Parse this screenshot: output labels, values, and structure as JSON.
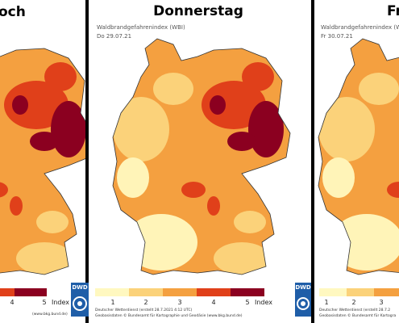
{
  "panels": [
    {
      "title": "och",
      "legend": [
        4,
        5
      ],
      "legend_unit": "Index",
      "footer": [
        "(www.bkg.bund.de)"
      ]
    },
    {
      "title": "Donnerstag",
      "subtitle": "Waldbrandgefahrenindex (WBI)",
      "date": "Do 29.07.21",
      "legend": [
        1,
        2,
        3,
        4,
        5
      ],
      "legend_unit": "Index",
      "logo": "DWD",
      "footer": [
        "Deutscher Wetterdienst (erstellt 28.7.2021 4:12 UTC)",
        "Geobasisdaten © Bundesamt für Kartographie und Geodäsie (www.bkg.bund.de)"
      ]
    },
    {
      "title": "Fr",
      "subtitle": "Waldbrandgefahrenindex (WBI)",
      "date": "Fr 30.07.21",
      "legend": [
        1,
        2,
        3
      ],
      "logo": "DWD",
      "footer": [
        "Deutscher Wetterdienst (erstellt 28.7.2",
        "Geobasisdaten © Bundesamt für Kartogra"
      ]
    }
  ]
}
